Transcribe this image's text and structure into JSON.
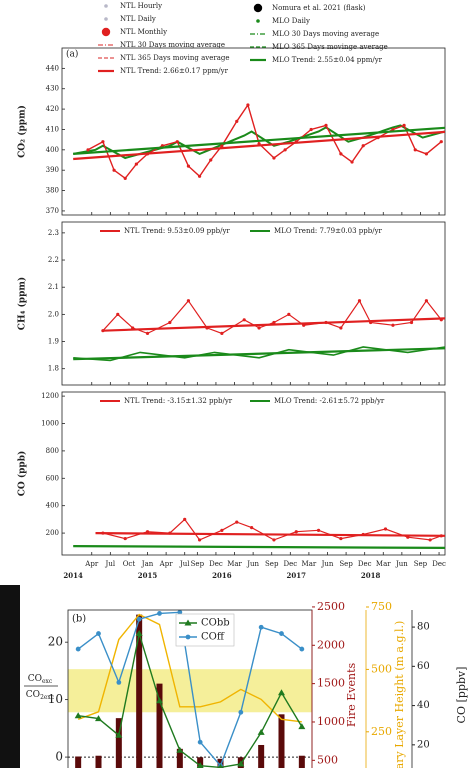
{
  "chart_data": [
    {
      "type": "line",
      "panel_label": "(a)",
      "ylabel": "CO₂ (ppm)",
      "xlim": [
        2013.85,
        2019.0
      ],
      "ylim": [
        368,
        450
      ],
      "yticks": [
        370,
        380,
        390,
        400,
        410,
        420,
        430,
        440
      ],
      "legend": [
        {
          "name": "NTL Hourly",
          "color": "#b8b8c8",
          "marker": "dot"
        },
        {
          "name": "Nomura et al. 2021 (flask)",
          "color": "#000000",
          "marker": "big-dot"
        },
        {
          "name": "NTL Daily",
          "color": "#b8b8c8",
          "marker": "cross"
        },
        {
          "name": "MLO Daily",
          "color": "#1a8a1a",
          "marker": "dot"
        },
        {
          "name": "NTL Monthly",
          "color": "#e02020",
          "marker": "big-dot"
        },
        {
          "name": "MLO 30 Days moving average",
          "color": "#1a8a1a",
          "marker": "dashdot"
        },
        {
          "name": "NTL 30 Days moving average",
          "color": "#e05050",
          "marker": "dashdot"
        },
        {
          "name": "MLO 365 Days movinge average",
          "color": "#1a8a1a",
          "marker": "dash"
        },
        {
          "name": "NTL 365 Days moving average",
          "color": "#e05050",
          "marker": "dash"
        },
        {
          "name": "MLO Trend: 2.55±0.04 ppm/yr",
          "color": "#1a8a1a",
          "marker": "thick"
        },
        {
          "name": "NTL Trend: 2.66±0.17 ppm/yr",
          "color": "#e02020",
          "marker": "thick"
        }
      ],
      "series": [
        {
          "color": "#1a8a1a",
          "width": 2,
          "marker": "none",
          "x": [
            2014.0,
            2014.3,
            2014.4,
            2014.7,
            2014.9,
            2015.3,
            2015.4,
            2015.7,
            2015.9,
            2016.3,
            2016.4,
            2016.7,
            2016.9,
            2017.3,
            2017.4,
            2017.7,
            2017.9,
            2018.3,
            2018.4,
            2018.7,
            2019.0
          ],
          "values": [
            398,
            400,
            402,
            396,
            398,
            402,
            404,
            398,
            401,
            407,
            409,
            402,
            404,
            409,
            411,
            404,
            406,
            411,
            412,
            406,
            409
          ]
        },
        {
          "color": "#e02020",
          "width": 1.4,
          "marker": "dot",
          "x": [
            2014.2,
            2014.4,
            2014.55,
            2014.7,
            2014.85,
            2015.0,
            2015.2,
            2015.4,
            2015.55,
            2015.7,
            2015.85,
            2016.0,
            2016.2,
            2016.35,
            2016.5,
            2016.7,
            2016.85,
            2017.0,
            2017.2,
            2017.4,
            2017.6,
            2017.75,
            2017.9,
            2018.1,
            2018.3,
            2018.45,
            2018.6,
            2018.75,
            2018.95
          ],
          "values": [
            400,
            404,
            390,
            386,
            393,
            398,
            402,
            404,
            392,
            387,
            395,
            402,
            414,
            422,
            403,
            396,
            400,
            404,
            410,
            412,
            398,
            394,
            402,
            406,
            410,
            412,
            400,
            398,
            404
          ]
        },
        {
          "color": "#1a8a1a",
          "width": 2.2,
          "marker": "none",
          "x": [
            2014.0,
            2019.0
          ],
          "values": [
            398,
            410.8
          ]
        },
        {
          "color": "#e02020",
          "width": 2.2,
          "marker": "none",
          "x": [
            2014.0,
            2019.0
          ],
          "values": [
            395.5,
            408.8
          ]
        }
      ]
    },
    {
      "type": "line",
      "ylabel": "CH₄ (ppm)",
      "xlim": [
        2013.85,
        2019.0
      ],
      "ylim": [
        1.74,
        2.34
      ],
      "yticks": [
        1.8,
        1.9,
        {
          "value": 2,
          "label": "2.0"
        },
        2.1,
        2.2,
        2.3
      ],
      "series": [
        {
          "name": "NTL Trend: 9.53±0.09 ppb/yr",
          "color": "#e02020",
          "width": 2.2,
          "marker": "none",
          "x": [
            2014.4,
            2019.0
          ],
          "values": [
            1.94,
            1.985
          ]
        },
        {
          "name": "MLO Trend: 7.79±0.03 ppb/yr",
          "color": "#1a8a1a",
          "width": 2.2,
          "marker": "none",
          "x": [
            2014.0,
            2019.0
          ],
          "values": [
            1.835,
            1.875
          ]
        },
        {
          "color": "#1a8a1a",
          "width": 1.6,
          "marker": "none",
          "x": [
            2014.0,
            2014.5,
            2014.9,
            2015.5,
            2015.9,
            2016.5,
            2016.9,
            2017.5,
            2017.9,
            2018.5,
            2019.0
          ],
          "values": [
            1.84,
            1.83,
            1.86,
            1.84,
            1.86,
            1.84,
            1.87,
            1.85,
            1.88,
            1.86,
            1.88
          ]
        },
        {
          "color": "#e02020",
          "width": 1.2,
          "marker": "dot",
          "x": [
            2014.4,
            2014.6,
            2014.8,
            2015.0,
            2015.3,
            2015.55,
            2015.8,
            2016.0,
            2016.3,
            2016.5,
            2016.7,
            2016.9,
            2017.1,
            2017.4,
            2017.6,
            2017.85,
            2018.0,
            2018.3,
            2018.55,
            2018.75,
            2018.95
          ],
          "values": [
            1.94,
            2.0,
            1.95,
            1.93,
            1.97,
            2.05,
            1.95,
            1.93,
            1.98,
            1.95,
            1.97,
            2.0,
            1.96,
            1.97,
            1.95,
            2.05,
            1.97,
            1.96,
            1.97,
            2.05,
            1.98
          ]
        }
      ]
    },
    {
      "type": "line",
      "ylabel": "CO (ppb)",
      "xlim": [
        2013.85,
        2019.0
      ],
      "ylim": [
        40,
        1230
      ],
      "yticks": [
        200,
        400,
        600,
        800,
        1000,
        1200
      ],
      "xticks": [
        {
          "value": 2014.25,
          "label": "Apr"
        },
        {
          "value": 2014.5,
          "label": "Jul"
        },
        {
          "value": 2014.75,
          "label": "Oct"
        },
        {
          "value": 2015.0,
          "label": "Jan"
        },
        {
          "value": 2015.25,
          "label": "Apr"
        },
        {
          "value": 2015.5,
          "label": "Jul"
        },
        {
          "value": 2015.67,
          "label": "Sep"
        },
        {
          "value": 2015.92,
          "label": "Dec"
        },
        {
          "value": 2016.17,
          "label": "Mar"
        },
        {
          "value": 2016.42,
          "label": "Jun"
        },
        {
          "value": 2016.67,
          "label": "Sep"
        },
        {
          "value": 2016.92,
          "label": "Dec"
        },
        {
          "value": 2017.17,
          "label": "Mar"
        },
        {
          "value": 2017.42,
          "label": "Jun"
        },
        {
          "value": 2017.67,
          "label": "Sep"
        },
        {
          "value": 2017.92,
          "label": "Dec"
        },
        {
          "value": 2018.17,
          "label": "Mar"
        },
        {
          "value": 2018.42,
          "label": "Jun"
        },
        {
          "value": 2018.67,
          "label": "Sep"
        },
        {
          "value": 2018.92,
          "label": "Dec"
        }
      ],
      "year_ticks": [
        2014,
        2015,
        2016,
        2017,
        2018
      ],
      "series": [
        {
          "name": "NTL Trend: -3.15±1.32 ppb/yr",
          "color": "#e02020",
          "width": 2.2,
          "marker": "none",
          "x": [
            2014.3,
            2019.0
          ],
          "values": [
            200,
            180
          ]
        },
        {
          "name": "MLO Trend: -2.61±5.72 ppb/yr",
          "color": "#1a8a1a",
          "width": 2.2,
          "marker": "none",
          "x": [
            2014.0,
            2019.0
          ],
          "values": [
            105,
            92
          ]
        },
        {
          "color": "#e02020",
          "width": 1.2,
          "marker": "dot",
          "x": [
            2014.4,
            2014.7,
            2015.0,
            2015.3,
            2015.5,
            2015.7,
            2016.0,
            2016.2,
            2016.4,
            2016.7,
            2017.0,
            2017.3,
            2017.6,
            2017.9,
            2018.2,
            2018.5,
            2018.8,
            2018.95
          ],
          "values": [
            200,
            160,
            210,
            200,
            300,
            150,
            220,
            280,
            240,
            150,
            210,
            220,
            160,
            190,
            230,
            170,
            150,
            180
          ]
        }
      ]
    },
    {
      "type": "combo",
      "panel_label": "(b)",
      "categories": [
        null,
        null,
        null,
        null,
        null,
        null,
        null,
        null,
        null,
        null,
        null,
        null
      ],
      "ylabel": {
        "num": "CO",
        "num_sub": "exc",
        "den": "CO",
        "den_sub": "2exc"
      },
      "ylim": [
        -1.9,
        25.6
      ],
      "yticks": [
        0,
        10,
        20
      ],
      "band": {
        "values": [
          7.8,
          15.3
        ],
        "color": "#f5ef9a"
      },
      "y2label": "Fire Events",
      "y2lim": [
        400,
        2460
      ],
      "y2ticks": [
        500,
        1000,
        1500,
        2000,
        2500
      ],
      "y3label": "ary Layer Height (m a.g.l.)",
      "y3lim": [
        105,
        738
      ],
      "y3ticks": [
        250,
        500,
        750
      ],
      "y4label": "CO [ppbv]",
      "y4lim": [
        8.2,
        88.7
      ],
      "y4ticks": [
        20,
        40,
        60,
        80
      ],
      "series": [
        {
          "color": "#5a0a0a",
          "kind": "bar",
          "axis": "y2",
          "values": [
            550,
            560,
            1050,
            2400,
            1500,
            650,
            540,
            520,
            540,
            700,
            1100,
            560
          ]
        },
        {
          "color": "#f0b400",
          "kind": "line",
          "axis": "y3",
          "values": [
            300,
            330,
            620,
            720,
            680,
            350,
            350,
            370,
            420,
            380,
            300,
            290
          ]
        },
        {
          "name": "COff",
          "color": "#3a8fc8",
          "kind": "line",
          "marker": "circle",
          "values": [
            18.8,
            21.5,
            13,
            24,
            25,
            25.2,
            2.6,
            -1.5,
            7.8,
            22.6,
            21.5,
            18.8
          ]
        },
        {
          "name": "CObb",
          "color": "#1f7a1f",
          "kind": "line",
          "marker": "triangle",
          "values": [
            7.2,
            6.7,
            3.8,
            21.5,
            9.8,
            1.2,
            -1.5,
            -1.8,
            -1.2,
            4.3,
            11.2,
            5.3
          ]
        }
      ]
    }
  ]
}
